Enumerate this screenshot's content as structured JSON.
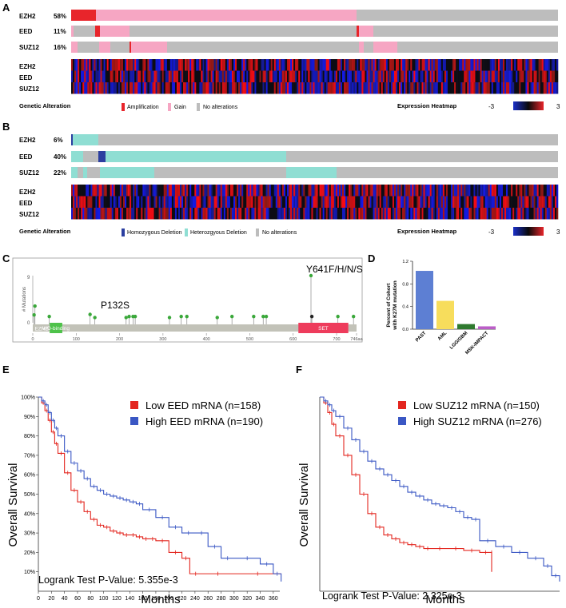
{
  "panels": {
    "A": {
      "letter": "A",
      "genes": [
        {
          "name": "EZH2",
          "pct": "58%"
        },
        {
          "name": "EED",
          "pct": "11%"
        },
        {
          "name": "SUZ12",
          "pct": "16%"
        }
      ],
      "legend_title": "Genetic Alteration",
      "legend_items": [
        "Amplification",
        "Gain",
        "No alterations"
      ],
      "legend_colors": [
        "#e8252b",
        "#f6a6c3",
        "#bdbdbd"
      ],
      "heatmap_label": "Expression Heatmap",
      "scale_min": "-3",
      "scale_max": "3"
    },
    "B": {
      "letter": "B",
      "genes": [
        {
          "name": "EZH2",
          "pct": "6%"
        },
        {
          "name": "EED",
          "pct": "40%"
        },
        {
          "name": "SUZ12",
          "pct": "22%"
        }
      ],
      "legend_title": "Genetic Alteration",
      "legend_items": [
        "Homozygous Deletion",
        "Heterozgyous Deletion",
        "No alterations"
      ],
      "legend_colors": [
        "#2b3fa0",
        "#8fded3",
        "#bdbdbd"
      ],
      "heatmap_label": "Expression Heatmap",
      "scale_min": "-3",
      "scale_max": "3"
    },
    "C": {
      "letter": "C",
      "y_label": "# Mutations",
      "y_ticks": [
        "9",
        "0"
      ],
      "x_ticks": [
        "0",
        "100",
        "200",
        "300",
        "400",
        "500",
        "600",
        "700",
        "746aa"
      ],
      "domains": [
        {
          "label": "EZH2",
          "start": 1,
          "end": 40,
          "color": "#c2c2b8"
        },
        {
          "label": "WD-binding",
          "start": 39,
          "end": 68,
          "color": "#4ec24a"
        },
        {
          "label": "SET",
          "start": 612,
          "end": 727,
          "color": "#ee3c5c"
        }
      ],
      "annotations": [
        "P132S",
        "Y641F/H/N/S"
      ],
      "lollipops": [
        {
          "pos": 3,
          "count": 1.5
        },
        {
          "pos": 5,
          "count": 3.2
        },
        {
          "pos": 38,
          "count": 1.2
        },
        {
          "pos": 132,
          "count": 1.6
        },
        {
          "pos": 143,
          "count": 1.0
        },
        {
          "pos": 215,
          "count": 1.0
        },
        {
          "pos": 222,
          "count": 1.2
        },
        {
          "pos": 231,
          "count": 1.2
        },
        {
          "pos": 236,
          "count": 1.2
        },
        {
          "pos": 315,
          "count": 1.0
        },
        {
          "pos": 342,
          "count": 1.2
        },
        {
          "pos": 355,
          "count": 1.2
        },
        {
          "pos": 425,
          "count": 1.0
        },
        {
          "pos": 459,
          "count": 1.2
        },
        {
          "pos": 509,
          "count": 1.2
        },
        {
          "pos": 531,
          "count": 1.2
        },
        {
          "pos": 538,
          "count": 1.2
        },
        {
          "pos": 641,
          "count": 9
        },
        {
          "pos": 643,
          "count": 1.2
        },
        {
          "pos": 703,
          "count": 1.2
        },
        {
          "pos": 739,
          "count": 1.2
        }
      ]
    },
    "D": {
      "letter": "D",
      "y_label_line1": "Percent of Cohort",
      "y_label_line2": "with K27M mutation"
    },
    "E": {
      "letter": "E",
      "y_label": "Overall Survival",
      "x_label": "Months",
      "legend": [
        {
          "label": "Low EED mRNA (n=158)",
          "color": "#e3261f"
        },
        {
          "label": "High EED mRNA (n=190)",
          "color": "#3a57c4"
        }
      ],
      "pvalue": "Logrank Test P-Value: 5.355e-3"
    },
    "F": {
      "letter": "F",
      "y_label": "Overall Survival",
      "x_label": "Months",
      "legend": [
        {
          "label": "Low SUZ12 mRNA (n=150)",
          "color": "#e3261f"
        },
        {
          "label": "High SUZ12 mRNA (n=276)",
          "color": "#3a57c4"
        }
      ],
      "pvalue": "Logrank Test P-Value: 2.325e-3"
    }
  },
  "chart_data": [
    {
      "type": "bar",
      "panel": "D",
      "categories": [
        "PAST",
        "AML",
        "LGG/GBM",
        "MSK-IMPACT"
      ],
      "values": [
        1.03,
        0.5,
        0.09,
        0.05
      ],
      "colors": [
        "#5d7fd3",
        "#f7dd5c",
        "#2f7a2f",
        "#bb5ec7"
      ],
      "ylim": [
        0,
        1.2
      ],
      "yticks": [
        "0.0",
        "0.4",
        "0.8",
        "1.2"
      ],
      "ylabel": "Percent of Cohort with K27M mutation"
    },
    {
      "type": "line",
      "panel": "E",
      "xlim": [
        0,
        370
      ],
      "ylim": [
        0,
        100
      ],
      "xticks": [
        "0",
        "20",
        "40",
        "60",
        "80",
        "100",
        "120",
        "140",
        "160",
        "180",
        "200",
        "220",
        "240",
        "260",
        "280",
        "300",
        "320",
        "340",
        "360"
      ],
      "yticks": [
        "10%",
        "20%",
        "30%",
        "40%",
        "50%",
        "60%",
        "70%",
        "80%",
        "90%",
        "100%"
      ],
      "series": [
        {
          "name": "Low EED mRNA (n=158)",
          "color": "#e3261f",
          "x": [
            0,
            5,
            10,
            15,
            20,
            25,
            30,
            40,
            50,
            60,
            70,
            80,
            90,
            100,
            110,
            120,
            130,
            140,
            150,
            160,
            170,
            180,
            200,
            220,
            232,
            250,
            300,
            372
          ],
          "y": [
            100,
            97,
            93,
            88,
            82,
            76,
            71,
            61,
            52,
            46,
            41,
            37,
            34,
            33,
            31,
            30,
            29,
            29,
            28,
            27,
            27,
            26,
            20,
            17,
            9,
            9,
            9,
            9
          ]
        },
        {
          "name": "High EED mRNA (n=190)",
          "color": "#3a57c4",
          "x": [
            0,
            5,
            10,
            15,
            20,
            25,
            30,
            40,
            50,
            60,
            70,
            80,
            90,
            100,
            110,
            120,
            130,
            140,
            150,
            160,
            180,
            200,
            220,
            240,
            260,
            280,
            300,
            340,
            360,
            372
          ],
          "y": [
            100,
            98,
            96,
            92,
            88,
            84,
            80,
            72,
            66,
            62,
            58,
            54,
            52,
            50,
            49,
            48,
            47,
            46,
            45,
            42,
            38,
            33,
            30,
            30,
            23,
            17,
            17,
            14,
            9,
            5
          ]
        }
      ]
    },
    {
      "type": "line",
      "panel": "F",
      "xlim": [
        0,
        300
      ],
      "ylim": [
        0,
        100
      ],
      "series": [
        {
          "name": "Low SUZ12 mRNA (n=150)",
          "color": "#e3261f",
          "x": [
            0,
            5,
            10,
            15,
            20,
            30,
            40,
            50,
            60,
            70,
            80,
            90,
            100,
            110,
            120,
            130,
            140,
            160,
            180,
            200,
            215,
            215
          ],
          "y": [
            100,
            97,
            92,
            86,
            80,
            70,
            60,
            50,
            40,
            33,
            29,
            27,
            25,
            24,
            23,
            22,
            22,
            22,
            21,
            20,
            20,
            10
          ]
        },
        {
          "name": "High SUZ12 mRNA (n=276)",
          "color": "#3a57c4",
          "x": [
            0,
            5,
            10,
            15,
            20,
            30,
            40,
            50,
            60,
            70,
            80,
            90,
            100,
            110,
            120,
            130,
            140,
            150,
            160,
            170,
            180,
            190,
            200,
            220,
            240,
            260,
            280,
            290,
            300
          ],
          "y": [
            100,
            98,
            96,
            93,
            90,
            84,
            78,
            72,
            67,
            63,
            60,
            57,
            54,
            51,
            49,
            47,
            45,
            44,
            43,
            41,
            38,
            37,
            26,
            23,
            20,
            17,
            13,
            8,
            5
          ]
        }
      ]
    }
  ]
}
